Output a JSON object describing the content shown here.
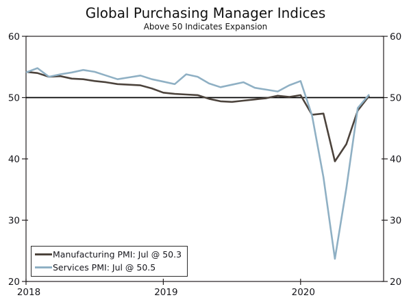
{
  "chart_data": {
    "type": "line",
    "title": "Global Purchasing Manager Indices",
    "subtitle": "Above 50 Indicates Expansion",
    "x_monthly_range": [
      "2018-01",
      "2020-07"
    ],
    "xticks": [
      {
        "label": "2018",
        "month_index": 0
      },
      {
        "label": "2019",
        "month_index": 12
      },
      {
        "label": "2020",
        "month_index": 24
      }
    ],
    "ylim": [
      20,
      60
    ],
    "yticks": [
      60,
      50,
      40,
      30,
      20
    ],
    "y_axis_sides": "both",
    "grid": false,
    "reference_line": 50,
    "legend_position": "lower-left",
    "series": [
      {
        "name": "Manufacturing PMI",
        "legend_label": "Manufacturing PMI: Jul @ 50.3",
        "color": "#4c433c",
        "last_point": {
          "month": "Jul",
          "value": 50.3
        },
        "values": [
          54.2,
          54.0,
          53.4,
          53.5,
          53.1,
          53.0,
          52.7,
          52.5,
          52.2,
          52.1,
          52.0,
          51.5,
          50.8,
          50.6,
          50.5,
          50.4,
          49.8,
          49.4,
          49.3,
          49.5,
          49.7,
          49.9,
          50.3,
          50.1,
          50.4,
          47.2,
          47.4,
          39.6,
          42.4,
          47.9,
          50.3
        ]
      },
      {
        "name": "Services PMI",
        "legend_label": "Services PMI: Jul @ 50.5",
        "color": "#8fb0c4",
        "last_point": {
          "month": "Jul",
          "value": 50.5
        },
        "values": [
          54.1,
          54.8,
          53.4,
          53.8,
          54.1,
          54.5,
          54.2,
          53.6,
          53.0,
          53.3,
          53.6,
          53.0,
          52.6,
          52.2,
          53.8,
          53.4,
          52.3,
          51.7,
          52.1,
          52.5,
          51.6,
          51.3,
          51.0,
          52.0,
          52.7,
          47.1,
          37.0,
          23.7,
          35.2,
          48.3,
          50.5
        ]
      }
    ],
    "colors": {
      "axis": "#231f20",
      "reference_line": "#000000",
      "tick_text": "#15151a",
      "background": "#ffffff"
    }
  }
}
